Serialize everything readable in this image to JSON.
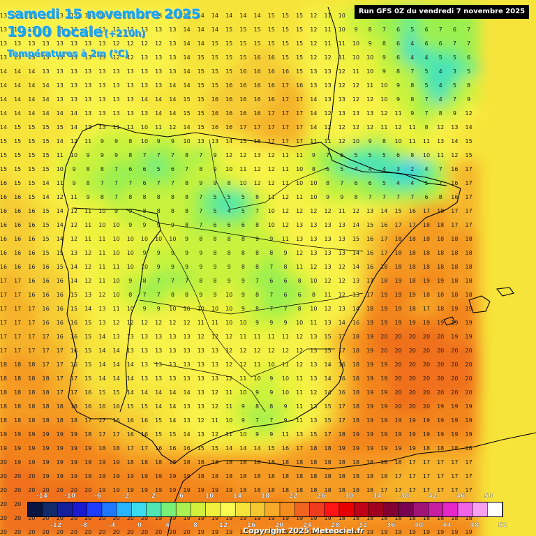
{
  "header": {
    "date": "samedi 15 novembre 2025",
    "time": "19:00 locale",
    "time_offset": "(+210h)",
    "variable": "Températures à 2m (°C)"
  },
  "run_label": "Run GFS 0Z du vendredi 7 novembre 2025",
  "copyright": "Copyright 2025 Meteociel.fr",
  "legend": {
    "top_labels": [
      "-14",
      "-10",
      "-6",
      "-2",
      "2",
      "6",
      "10",
      "14",
      "18",
      "22",
      "26",
      "30",
      "34",
      "38",
      "42",
      "46",
      "50"
    ],
    "bottom_labels": [
      "-12",
      "-8",
      "-4",
      "0",
      "4",
      "8",
      "12",
      "16",
      "20",
      "24",
      "28",
      "32",
      "36",
      "40",
      "44",
      "48",
      "52"
    ],
    "colors": [
      "#0a1440",
      "#102a6a",
      "#14209a",
      "#1a1ad0",
      "#1e3cff",
      "#1e78ff",
      "#28b4ff",
      "#3cdcf0",
      "#50e6b4",
      "#78f078",
      "#aaf050",
      "#d2f03c",
      "#f0f03c",
      "#fafa50",
      "#f7e43a",
      "#f5c832",
      "#f5aa28",
      "#f58c1e",
      "#f0641e",
      "#f03c1e",
      "#ff1414",
      "#e60000",
      "#c00014",
      "#a0001e",
      "#820032",
      "#780050",
      "#a01478",
      "#c81ea0",
      "#e628c8",
      "#f064e6",
      "#f8a0f0",
      "#ffffff"
    ]
  },
  "map": {
    "region": "Iberian Peninsula",
    "units": "°C",
    "value_rows": [
      "13 13 13 13 13 13 13 13 13 13 13 13 13 14 14 14 14 14 14 15 15 15 12 11 10 9 8 7 6 5 6 7 6 7",
      "13 13 13 13 13 13 13 13 13 13 13 13 13 14 14 14 15 15 15 15 15 15 12 11 10 9 8 7 6 5 6 7 6 7",
      "13 13 13 13 13 13 13 13 12 12 12 12 13 14 14 15 15 15 15 15 15 15 12 11 11 10 9 8 6 4 6 6 7 7",
      "13 13 13 13 13 13 13 13 12 12 13 13 13 14 15 15 15 15 16 16 15 15 12 12 11 10 10 9 6 4 4 5 5 6",
      "14 14 14 13 13 13 13 13 13 13 13 13 13 14 15 15 15 16 16 16 16 15 13 13 12 11 10 9 8 7 5 4 3 5",
      "14 14 14 14 13 13 13 13 13 13 13 13 14 14 15 15 16 16 16 16 17 16 13 13 12 12 11 10 9 8 5 4 5 8",
      "14 14 14 14 13 13 13 13 13 13 14 14 14 15 15 16 16 16 16 16 17 17 14 13 13 12 12 10 9 8 7 4 7 9",
      "14 14 14 14 14 14 13 13 13 13 13 14 14 15 15 16 16 16 16 17 17 17 14 12 13 13 13 12 11 9 7 8 9 12",
      "14 15 15 15 15 14 13 13 11 11 10 11 12 14 15 16 16 17 17 17 17 17 14 12 12 12 12 11 12 11 8 12 13 14",
      "15 15 15 15 14 12 11 9 9 8 10 9 9 10 13 13 14 15 16 17 17 17 11 11 12 10 9 8 10 11 11 13 14 15",
      "15 15 15 15 11 10 9 9 9 8 7 7 7 8 7 9 12 12 13 12 11 11 9 7 6 5 5 5 6 8 10 11 12 15",
      "15 15 15 15 10 9 8 8 7 6 6 5 6 7 8 9 10 11 12 12 11 10 8 6 5 4 4 4 3 2 4 7 16 17",
      "16 15 15 14 11 9 8 7 7 7 6 7 7 8 9 9 8 10 12 12 11 10 10 8 7 6 6 5 4 4 5 7 16 17",
      "16 16 15 14 12 11 9 8 7 8 8 8 8 8 7 5 5 5 8 11 12 11 10 9 9 8 7 7 7 7 6 8 16 17",
      "16 16 16 15 14 12 11 10 9 9 8 8 8 8 7 5 4 5 7 10 12 12 12 12 11 12 13 14 15 16 17 18 17 17",
      "16 16 16 15 14 12 11 10 10 9 9 9 9 8 7 6 6 6 8 10 12 13 13 13 13 14 15 16 17 17 18 18 17 17",
      "16 16 16 15 14 12 11 11 10 10 10 10 10 9 8 8 8 8 9 9 11 13 13 13 13 15 16 17 18 18 18 18 18 18",
      "16 16 16 15 15 13 12 11 10 10 9 9 9 9 9 8 8 8 8 8 9 12 13 13 13 14 16 17 18 18 18 18 18 18",
      "16 16 16 16 15 14 12 11 11 10 10 9 9 9 9 9 9 8 8 7 8 11 12 13 12 14 16 18 18 18 18 18 18 18",
      "17 17 16 16 16 14 12 11 10 9 8 7 7 7 8 8 9 9 7 6 6 8 10 12 12 13 17 18 19 18 19 19 18 18",
      "17 17 16 16 16 15 13 12 10 8 7 7 8 8 9 9 10 9 8 7 6 6 8 11 12 13 17 19 19 19 18 18 18 18",
      "17 17 17 16 16 15 14 13 11 10 9 9 10 10 10 10 10 9 8 7 7 8 10 12 13 14 18 19 19 18 17 18 19 19",
      "17 17 17 16 16 16 15 13 12 12 12 12 12 12 11 11 10 10 9 9 9 10 11 13 14 16 19 19 19 19 19 19 19 19",
      "17 17 17 17 16 16 15 14 13 13 13 13 13 13 12 12 12 11 11 11 11 12 13 15 17 18 19 20 20 20 20 20 19 19",
      "17 17 17 17 17 16 15 14 14 13 13 13 13 13 13 13 12 12 12 12 12 12 13 15 17 18 19 20 20 20 20 20 20 20",
      "18 18 18 17 17 16 15 14 14 14 13 13 13 13 13 13 12 12 11 10 11 12 13 14 16 18 19 19 20 20 20 20 20 20",
      "18 18 18 18 17 17 15 14 14 14 13 13 13 13 13 13 12 11 10 9 10 11 13 14 16 18 19 19 20 20 20 20 20 20",
      "18 18 18 18 17 17 16 15 15 14 14 14 14 14 13 12 11 10 9 9 10 11 12 14 16 18 19 19 20 20 20 20 20 20",
      "18 18 18 18 18 18 16 16 16 15 15 14 14 13 13 12 11 9 8 8 9 11 13 15 17 18 19 19 20 20 20 19 19 19",
      "18 18 18 18 18 18 17 17 16 16 16 15 14 13 12 11 10 9 7 7 9 11 13 15 17 18 19 19 19 19 19 19 19 19",
      "19 19 19 19 19 19 18 17 17 16 16 15 15 14 13 12 11 10 9 9 11 13 15 17 18 19 19 19 19 19 19 19 19 19",
      "19 19 19 19 19 19 19 18 18 17 17 16 16 16 15 15 14 14 14 15 16 17 18 18 19 19 19 19 19 19 18 18 18 18",
      "20 19 19 19 19 19 19 19 19 18 18 18 18 18 18 18 18 18 18 18 18 18 18 18 18 18 18 18 18 17 17 17 17 17",
      "20 20 20 19 19 19 19 19 19 19 19 19 19 19 18 18 18 18 18 18 18 18 18 18 18 18 18 18 17 17 17 17 17 17",
      "20 20 20 20 20 20 20 19 19 19 19 19 19 19 19 19 19 18 18 18 18 18 18 18 18 18 18 17 17 17 17 17 17 17",
      "20 20 20 20 20 20 20 20 19 19 19 19 19 19 19 19 19 19 19 19 19 18 18 18 18 18 18 18 17 17 17 17 17 17",
      "20 20 20 20 20 20 20 20 20 20 20 19 19 19 19 19 19 19 19 19 19 19 19 19 18 18 18 18 18 18 18 18 18 18",
      "20 20 20 20 20 20 20 20 20 20 20 20 20 20 19 19 19 19 19 19 19 19 19 19 19 19 19 19 19 19 19 19 19 19"
    ]
  }
}
